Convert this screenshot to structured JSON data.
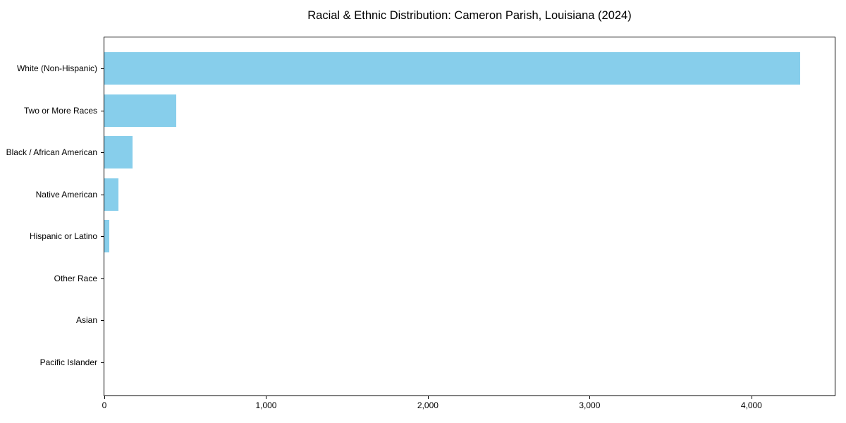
{
  "chart_data": {
    "type": "bar",
    "orientation": "horizontal",
    "title": "Racial & Ethnic Distribution: Cameron Parish, Louisiana (2024)",
    "categories": [
      "White (Non-Hispanic)",
      "Two or More Races",
      "Black / African American",
      "Native American",
      "Hispanic or Latino",
      "Other Race",
      "Asian",
      "Pacific Islander"
    ],
    "values": [
      4300,
      445,
      175,
      85,
      30,
      0,
      0,
      0
    ],
    "xlabel": "",
    "ylabel": "",
    "xlim": [
      0,
      4515
    ],
    "xticks": {
      "values": [
        0,
        1000,
        2000,
        3000,
        4000
      ],
      "labels": [
        "0",
        "1,000",
        "2,000",
        "3,000",
        "4,000"
      ]
    },
    "grid": false,
    "legend": null,
    "bar_color": "#87CEEB",
    "spine_color": "#000000",
    "text_color": "#000000",
    "background_color": "#ffffff"
  }
}
